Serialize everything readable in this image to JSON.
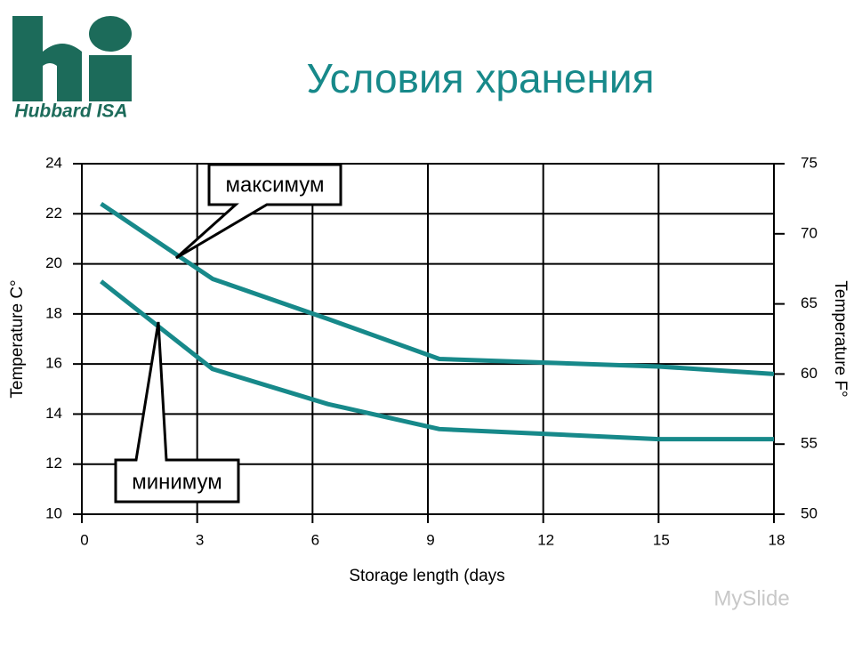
{
  "logo_text": "Hubbard ISA",
  "watermark": "MySlide",
  "chart_data": {
    "type": "line",
    "title": "Условия хранения",
    "x_label": "Storage length (days",
    "y_label": "Temperature C°",
    "y2_label": "Temperature F°",
    "x": [
      0.5,
      3.4,
      6.4,
      9.3,
      15,
      18
    ],
    "series": [
      {
        "name": "максимум",
        "color": "#17898a",
        "values": [
          22.4,
          19.4,
          17.8,
          16.2,
          15.9,
          15.6
        ]
      },
      {
        "name": "минимум",
        "color": "#17898a",
        "values": [
          19.3,
          15.8,
          14.4,
          13.4,
          13.0,
          13.0
        ]
      }
    ],
    "xlim": [
      0,
      18
    ],
    "xticks": [
      0,
      3,
      6,
      9,
      12,
      15,
      18
    ],
    "ylim": [
      10,
      24
    ],
    "yticks": [
      10,
      12,
      14,
      16,
      18,
      20,
      22,
      24
    ],
    "y2lim": [
      50,
      75
    ],
    "y2ticks": [
      50,
      55,
      60,
      65,
      70,
      75
    ],
    "grid": true
  }
}
